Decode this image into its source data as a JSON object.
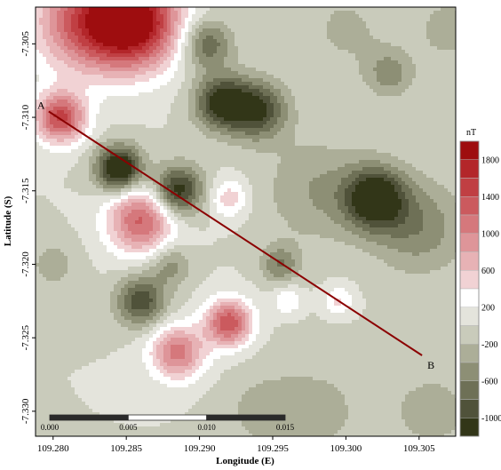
{
  "chart_data": {
    "type": "heatmap",
    "title": "",
    "xlabel": "Longitude (E)",
    "ylabel": "Latitude (S)",
    "xlim": [
      109.2788,
      109.3075
    ],
    "ylim": [
      -7.3317,
      -7.3025
    ],
    "x_ticks": [
      "109.280",
      "109.285",
      "109.290",
      "109.295",
      "109.300",
      "109.305"
    ],
    "x_tick_values": [
      109.28,
      109.285,
      109.29,
      109.295,
      109.3,
      109.305
    ],
    "y_ticks": [
      "-7.305",
      "-7.310",
      "-7.315",
      "-7.320",
      "-7.325",
      "-7.330"
    ],
    "y_tick_values": [
      -7.305,
      -7.31,
      -7.315,
      -7.32,
      -7.325,
      -7.33
    ],
    "colorbar": {
      "unit": "nT",
      "levels": [
        2000,
        1800,
        1600,
        1400,
        1200,
        1000,
        800,
        600,
        400,
        200,
        0,
        -200,
        -400,
        -600,
        -800,
        -1000,
        -1200
      ],
      "labels": [
        "1800",
        "1400",
        "1000",
        "600",
        "200",
        "-200",
        "-600",
        "-1000"
      ],
      "label_values": [
        1800,
        1400,
        1000,
        600,
        200,
        -200,
        -600,
        -1000
      ],
      "colors": [
        "#9e0d0f",
        "#b3262a",
        "#c03f43",
        "#cb5a5e",
        "#d5787c",
        "#de9599",
        "#e7b2b5",
        "#f1d2d4",
        "#ffffff",
        "#e4e4dc",
        "#c9cbbb",
        "#acae98",
        "#8d8f75",
        "#6e7056",
        "#50523a",
        "#323618"
      ]
    },
    "anomalies": [
      {
        "x": 109.2855,
        "y": -7.3035,
        "value": 2000,
        "s": 0.0022
      },
      {
        "x": 109.282,
        "y": -7.3035,
        "value": 1150,
        "s": 0.0024
      },
      {
        "x": 109.2805,
        "y": -7.31,
        "value": 1450,
        "s": 0.0012
      },
      {
        "x": 109.286,
        "y": -7.317,
        "value": 1250,
        "s": 0.0016
      },
      {
        "x": 109.292,
        "y": -7.324,
        "value": 1400,
        "s": 0.0011
      },
      {
        "x": 109.2885,
        "y": -7.326,
        "value": 1100,
        "s": 0.0013
      },
      {
        "x": 109.292,
        "y": -7.3155,
        "value": 550,
        "s": 0.0009
      },
      {
        "x": 109.296,
        "y": -7.3225,
        "value": 400,
        "s": 0.0007
      },
      {
        "x": 109.2995,
        "y": -7.3225,
        "value": 450,
        "s": 0.0007
      },
      {
        "x": 109.2845,
        "y": -7.3135,
        "value": -1450,
        "s": 0.0011
      },
      {
        "x": 109.2885,
        "y": -7.315,
        "value": -1200,
        "s": 0.0012
      },
      {
        "x": 109.2915,
        "y": -7.309,
        "value": -1150,
        "s": 0.0013
      },
      {
        "x": 109.294,
        "y": -7.3095,
        "value": -1000,
        "s": 0.0014
      },
      {
        "x": 109.2905,
        "y": -7.305,
        "value": -800,
        "s": 0.0012
      },
      {
        "x": 109.302,
        "y": -7.3155,
        "value": -1250,
        "s": 0.0015
      },
      {
        "x": 109.286,
        "y": -7.3225,
        "value": -950,
        "s": 0.0012
      },
      {
        "x": 109.2955,
        "y": -7.32,
        "value": -600,
        "s": 0.0009
      },
      {
        "x": 109.288,
        "y": -7.32,
        "value": -500,
        "s": 0.001
      },
      {
        "x": 109.303,
        "y": -7.307,
        "value": -500,
        "s": 0.0012
      },
      {
        "x": 109.305,
        "y": -7.3175,
        "value": -550,
        "s": 0.0022
      },
      {
        "x": 109.298,
        "y": -7.315,
        "value": -400,
        "s": 0.0025
      },
      {
        "x": 109.298,
        "y": -7.33,
        "value": -250,
        "s": 0.003
      },
      {
        "x": 109.306,
        "y": -7.33,
        "value": -300,
        "s": 0.002
      },
      {
        "x": 109.28,
        "y": -7.32,
        "value": -300,
        "s": 0.0012
      },
      {
        "x": 109.294,
        "y": -7.33,
        "value": -200,
        "s": 0.0018
      },
      {
        "x": 109.307,
        "y": -7.304,
        "value": -350,
        "s": 0.0014
      },
      {
        "x": 109.3,
        "y": -7.304,
        "value": -250,
        "s": 0.002
      }
    ],
    "profile_line": {
      "start": {
        "label": "A",
        "x": 109.2797,
        "y": -7.3096
      },
      "end": {
        "label": "B",
        "x": 109.3052,
        "y": -7.3262
      },
      "color": "#8b0000"
    },
    "scale_bar": {
      "labels": [
        "0.000",
        "0.005",
        "0.010",
        "0.015"
      ],
      "values": [
        0.0,
        0.005,
        0.01,
        0.015
      ],
      "colors": [
        "#2a2a2a",
        "#ffffff",
        "#2a2a2a"
      ]
    }
  }
}
